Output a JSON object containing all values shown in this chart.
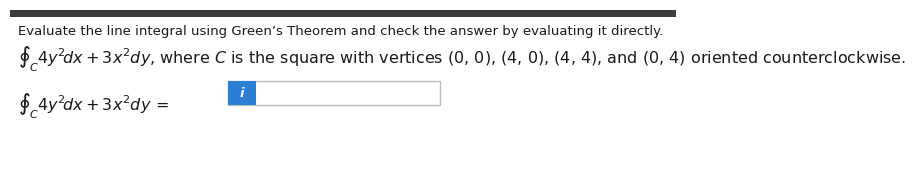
{
  "background_color": "#ffffff",
  "header_bar_color": "#3d3d3d",
  "header_bar_height": 0.055,
  "top_text": "Evaluate the line integral using Green’s Theorem and check the answer by evaluating it directly.",
  "integral_line1_math": "$\\oint_C 4y^2\\!dx + 3x^2dy$",
  "integral_line1_rest": ", where $C$ is the square with vertices (0, 0), (4, 0), (4, 4), and (0, 4) oriented counterclockwise.",
  "integral_line2_math": "$\\oint_C 4y^2\\!dx + 3x^2dy\\, =$",
  "answer_box_color": "#2b7fd4",
  "answer_icon": "i",
  "answer_icon_color": "#ffffff",
  "border_color": "#bbbbbb",
  "text_color": "#1a1a1a",
  "font_size_top": 9.5,
  "font_size_integral": 11.5,
  "font_size_btn": 9.5
}
